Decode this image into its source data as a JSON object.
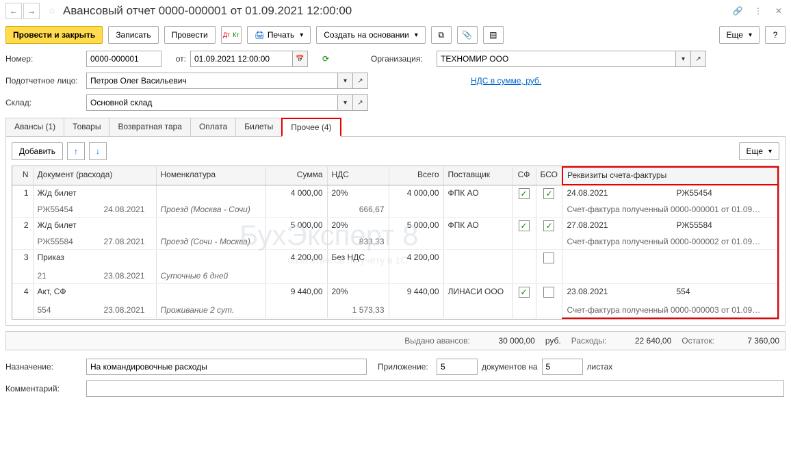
{
  "title": "Авансовый отчет 0000-000001 от 01.09.2021 12:00:00",
  "toolbar": {
    "post_close": "Провести и закрыть",
    "save": "Записать",
    "post": "Провести",
    "print": "Печать",
    "create_based": "Создать на основании",
    "more": "Еще"
  },
  "form": {
    "number_label": "Номер:",
    "number": "0000-000001",
    "date_label": "от:",
    "date": "01.09.2021 12:00:00",
    "org_label": "Организация:",
    "org": "ТЕХНОМИР ООО",
    "person_label": "Подотчетное лицо:",
    "person": "Петров Олег Васильевич",
    "nds_link": "НДС в сумме, руб.",
    "warehouse_label": "Склад:",
    "warehouse": "Основной склад"
  },
  "tabs": {
    "advances": "Авансы (1)",
    "goods": "Товары",
    "tara": "Возвратная тара",
    "payment": "Оплата",
    "tickets": "Билеты",
    "other": "Прочее (4)"
  },
  "sub_toolbar": {
    "add": "Добавить",
    "more": "Еще"
  },
  "table": {
    "headers": {
      "n": "N",
      "doc": "Документ (расхода)",
      "nom": "Номенклатура",
      "sum": "Сумма",
      "nds": "НДС",
      "total": "Всего",
      "supplier": "Поставщик",
      "sf": "СФ",
      "bso": "БСО",
      "req": "Реквизиты счета-фактуры"
    },
    "rows": [
      {
        "n": "1",
        "doc": "Ж/д билет",
        "doc_num": "РЖ55454",
        "doc_date": "24.08.2021",
        "nom": "Проезд (Москва - Сочи)",
        "sum": "4 000,00",
        "nds_rate": "20%",
        "nds_sum": "666,67",
        "total": "4 000,00",
        "supplier": "ФПК АО",
        "sf": true,
        "bso": true,
        "req_date": "24.08.2021",
        "req_num": "РЖ55454",
        "req_doc": "Счет-фактура полученный 0000-000001 от 01.09…"
      },
      {
        "n": "2",
        "doc": "Ж/д билет",
        "doc_num": "РЖ55584",
        "doc_date": "27.08.2021",
        "nom": "Проезд (Сочи - Москва)",
        "sum": "5 000,00",
        "nds_rate": "20%",
        "nds_sum": "833,33",
        "total": "5 000,00",
        "supplier": "ФПК АО",
        "sf": true,
        "bso": true,
        "req_date": "27.08.2021",
        "req_num": "РЖ55584",
        "req_doc": "Счет-фактура полученный 0000-000002 от 01.09…"
      },
      {
        "n": "3",
        "doc": "Приказ",
        "doc_num": "21",
        "doc_date": "23.08.2021",
        "nom": "Суточные 6 дней",
        "sum": "4 200,00",
        "nds_rate": "Без НДС",
        "nds_sum": "",
        "total": "4 200,00",
        "supplier": "",
        "sf": false,
        "bso": false,
        "bso_shown": true,
        "req_date": "",
        "req_num": "",
        "req_doc": ""
      },
      {
        "n": "4",
        "doc": "Акт, СФ",
        "doc_num": "554",
        "doc_date": "23.08.2021",
        "nom": "Проживание 2 сут.",
        "sum": "9 440,00",
        "nds_rate": "20%",
        "nds_sum": "1 573,33",
        "total": "9 440,00",
        "supplier": "ЛИНАСИ ООО",
        "sf": true,
        "bso": false,
        "bso_shown": true,
        "req_date": "23.08.2021",
        "req_num": "554",
        "req_doc": "Счет-фактура полученный 0000-000003 от 01.09…"
      }
    ]
  },
  "summary": {
    "advance_label": "Выдано авансов:",
    "advance": "30 000,00",
    "currency": "руб.",
    "expense_label": "Расходы:",
    "expense": "22 640,00",
    "balance_label": "Остаток:",
    "balance": "7 360,00"
  },
  "footer": {
    "purpose_label": "Назначение:",
    "purpose": "На командировочные расходы",
    "attach_label": "Приложение:",
    "attach_count": "5",
    "attach_docs": "документов на",
    "attach_pages": "5",
    "attach_sheets": "листах",
    "comment_label": "Комментарий:"
  },
  "watermark": "БухЭксперт 8",
  "watermark_sub": "база ответов по учёту в 1С"
}
